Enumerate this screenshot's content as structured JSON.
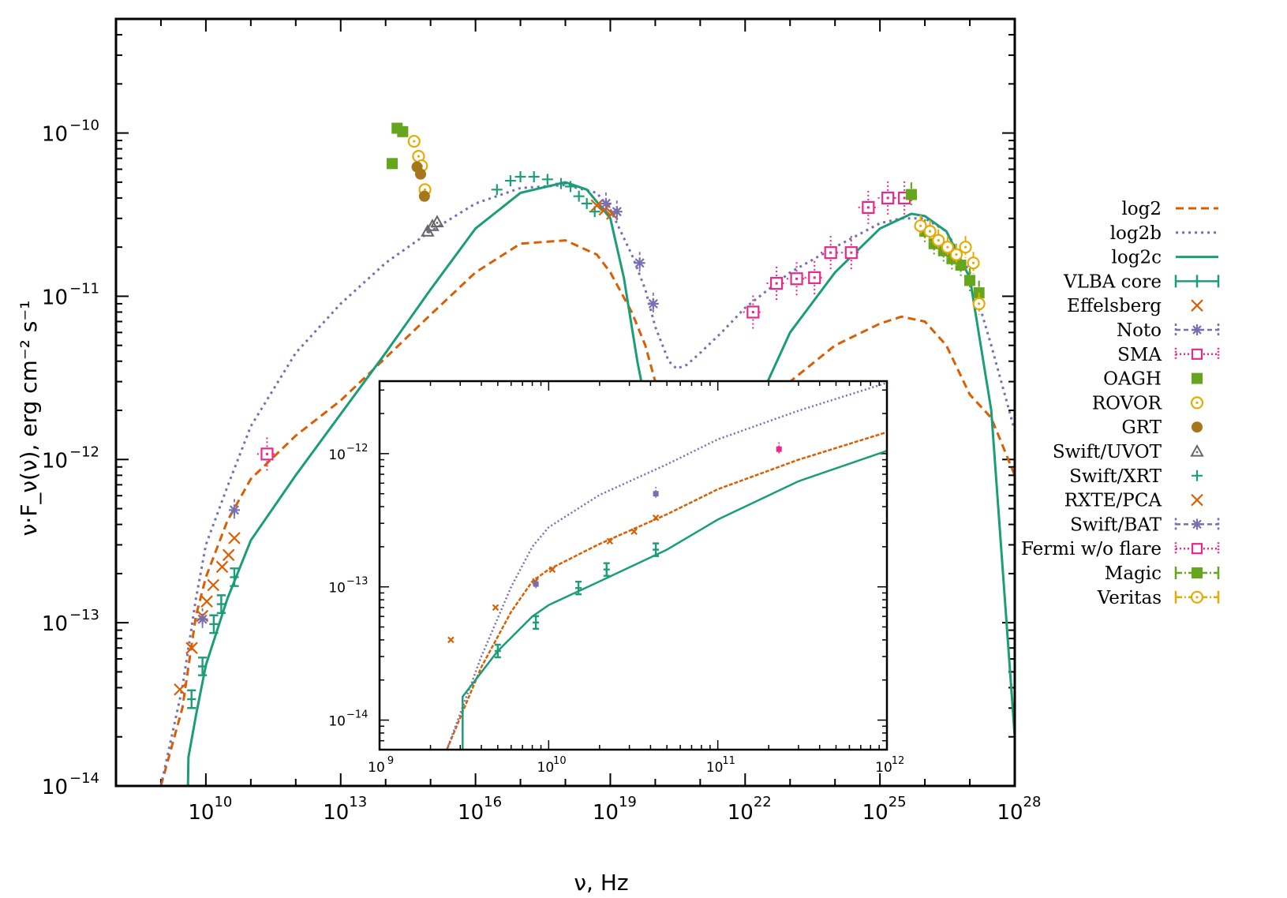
{
  "colors": {
    "log2": "#d95f02",
    "log2b": "#7570b3",
    "log2c": "#1b9e77",
    "vlba": "#1b9e77",
    "effelsberg": "#d95f02",
    "noto": "#7570b3",
    "sma": "#e7298a",
    "oagh": "#66a61e",
    "rovor": "#e6ab02",
    "grt": "#a6761d",
    "uvot": "#666666",
    "xrt": "#1b9e77",
    "rxte": "#d95f02",
    "bat": "#7570b3",
    "fermi": "#e7298a",
    "magic": "#66a61e",
    "veritas": "#e6ab02"
  },
  "chart_data": {
    "type": "scatter",
    "xlabel": "ν, Hz",
    "ylabel": "ν·F_ν(ν), erg cm⁻² s⁻¹",
    "xscale": "log",
    "yscale": "log",
    "xlim": [
      100000000.0,
      1e+28
    ],
    "ylim": [
      1e-14,
      5e-10
    ],
    "x_tick_labels": [
      "10",
      "10",
      "10",
      "10",
      "10",
      "10",
      "10"
    ],
    "x_tick_exponents": [
      "10",
      "13",
      "16",
      "19",
      "22",
      "25",
      "28"
    ],
    "y_tick_labels": [
      "10",
      "10",
      "10",
      "10",
      "10"
    ],
    "y_tick_exponents": [
      "−10",
      "−11",
      "−12",
      "−13",
      "−14"
    ],
    "legend_position": "right, outside",
    "series": [
      {
        "name": "log2",
        "kind": "model",
        "style": "dashed",
        "color_key": "log2",
        "x": [
          1000000000.0,
          3000000000.0,
          6000000000.0,
          10000000000.0,
          30000000000.0,
          100000000000.0,
          1000000000000.0,
          10000000000000.0,
          100000000000000.0,
          1000000000000000.0,
          1e+16,
          1e+17,
          1e+18,
          5e+18,
          1e+19,
          3e+19,
          6e+19,
          1e+20,
          2e+20,
          3e+20,
          1e+21,
          1e+22,
          1e+23,
          1e+24,
          1e+25,
          3e+25,
          1e+26,
          3e+26,
          1e+27,
          3e+27,
          1e+28
        ],
        "y": [
          1e-14,
          3e-14,
          1.1e-13,
          1.9e-13,
          4.2e-13,
          7.6e-13,
          1.4e-12,
          2.3e-12,
          4.2e-12,
          7.7e-12,
          1.4e-11,
          2.1e-11,
          2.2e-11,
          1.8e-11,
          1.4e-11,
          8e-12,
          5e-12,
          3e-12,
          1.5e-12,
          1e-12,
          1e-12,
          1.5e-12,
          3e-12,
          5e-12,
          6.8e-12,
          7.5e-12,
          7e-12,
          5e-12,
          2.5e-12,
          1.8e-12,
          8e-13
        ]
      },
      {
        "name": "log2b",
        "kind": "model",
        "style": "dotted",
        "color_key": "log2b",
        "x": [
          1000000000.0,
          3000000000.0,
          6000000000.0,
          10000000000.0,
          30000000000.0,
          100000000000.0,
          1000000000000.0,
          10000000000000.0,
          100000000000000.0,
          1000000000000000.0,
          1e+16,
          1e+17,
          1e+18,
          5e+18,
          1e+19,
          3e+19,
          6e+19,
          1e+20,
          2e+20,
          3e+20,
          5e+20,
          1e+21,
          3e+21,
          1e+22,
          1e+23,
          1e+24,
          1e+25,
          3e+25,
          1e+26,
          3e+26,
          1e+27,
          3e+27,
          1e+28
        ],
        "y": [
          1e-14,
          4e-14,
          1.4e-13,
          3e-13,
          6.8e-13,
          1.6e-12,
          4.5e-12,
          9e-12,
          1.6e-11,
          2.5e-11,
          3.7e-11,
          4.6e-11,
          4.8e-11,
          4.3e-11,
          3.4e-11,
          1.8e-11,
          1.1e-11,
          6.5e-12,
          4e-12,
          3.6e-12,
          3.8e-12,
          4.5e-12,
          6e-12,
          8.5e-12,
          1.4e-11,
          2e-11,
          2.8e-11,
          3e-11,
          3e-11,
          2.5e-11,
          1.4e-11,
          5e-12,
          1.5e-12
        ]
      },
      {
        "name": "log2c",
        "kind": "model",
        "style": "solid",
        "color_key": "log2c",
        "x": [
          4000000000.0,
          4100000000.0,
          6000000000.0,
          10000000000.0,
          30000000000.0,
          100000000000.0,
          1000000000000.0,
          10000000000000.0,
          100000000000000.0,
          1000000000000000.0,
          1e+16,
          1e+17,
          1e+18,
          3e+18,
          1e+19,
          2e+19,
          4e+19,
          8e+19,
          1e+22,
          1e+23,
          1e+24,
          1e+25,
          5e+25,
          1e+26,
          3e+26,
          1e+27,
          3e+27,
          1e+28
        ],
        "y": [
          1e-14,
          1.5e-14,
          2.7e-14,
          5.5e-14,
          1.4e-13,
          3.2e-13,
          8e-13,
          1.9e-12,
          4.5e-12,
          1.1e-11,
          2.6e-11,
          4.3e-11,
          5e-11,
          4.5e-11,
          3e-11,
          1.3e-11,
          4e-12,
          1.5e-12,
          1.5e-12,
          6e-12,
          1.4e-11,
          2.6e-11,
          3.2e-11,
          3.1e-11,
          2.5e-11,
          1.3e-11,
          2e-12,
          2e-14
        ]
      },
      {
        "name": "VLBA core",
        "kind": "data",
        "marker": "line-errbar",
        "color_key": "vlba",
        "x": [
          4800000000.0,
          8400000000.0,
          15000000000.0,
          22000000000.0,
          43000000000.0
        ],
        "y": [
          3.4e-14,
          5.4e-14,
          9.8e-14,
          1.3e-13,
          1.9e-13
        ]
      },
      {
        "name": "Effelsberg",
        "kind": "data",
        "marker": "x",
        "color_key": "effelsberg",
        "x": [
          2640000000.0,
          4850000000.0,
          8350000000.0,
          10500000000.0,
          14600000000.0,
          23000000000.0,
          32000000000.0,
          43000000000.0
        ],
        "y": [
          3.9e-14,
          7e-14,
          1.1e-13,
          1.35e-13,
          1.7e-13,
          2.2e-13,
          2.6e-13,
          3.3e-13
        ]
      },
      {
        "name": "Noto",
        "kind": "data",
        "marker": "asterisk-dashed",
        "color_key": "noto",
        "x": [
          8400000000.0,
          43000000000.0
        ],
        "y": [
          1.05e-13,
          4.9e-13
        ]
      },
      {
        "name": "SMA",
        "kind": "data",
        "marker": "square-dotted",
        "color_key": "sma",
        "x": [
          230000000000.0
        ],
        "y": [
          1.08e-12
        ]
      },
      {
        "name": "OAGH",
        "kind": "data",
        "marker": "filled-square",
        "color_key": "oagh",
        "x": [
          140000000000000.0,
          180000000000000.0,
          240000000000000.0
        ],
        "y": [
          6.5e-11,
          1.07e-10,
          1.02e-10
        ]
      },
      {
        "name": "ROVOR",
        "kind": "data",
        "marker": "circle-dot",
        "color_key": "rovor",
        "x": [
          430000000000000.0,
          540000000000000.0,
          630000000000000.0,
          750000000000000.0
        ],
        "y": [
          8.9e-11,
          7.2e-11,
          6.3e-11,
          4.5e-11
        ]
      },
      {
        "name": "GRT",
        "kind": "data",
        "marker": "filled-circle",
        "color_key": "grt",
        "x": [
          500000000000000.0,
          600000000000000.0,
          730000000000000.0
        ],
        "y": [
          6.2e-11,
          5.6e-11,
          4.1e-11
        ]
      },
      {
        "name": "Swift/UVOT",
        "kind": "data",
        "marker": "triangle",
        "color_key": "uvot",
        "x": [
          860000000000000.0,
          1100000000000000.0,
          1400000000000000.0
        ],
        "y": [
          2.5e-11,
          2.7e-11,
          2.85e-11
        ]
      },
      {
        "name": "Swift/XRT",
        "kind": "data",
        "marker": "plus",
        "color_key": "xrt",
        "x": [
          3e+16,
          6e+16,
          1e+17,
          2e+17,
          4e+17,
          8e+17,
          1.3e+18,
          2e+18,
          3e+18,
          4.5e+18
        ],
        "y": [
          4.5e-11,
          5.1e-11,
          5.4e-11,
          5.4e-11,
          5.2e-11,
          4.9e-11,
          4.7e-11,
          4.1e-11,
          3.7e-11,
          3.3e-11
        ]
      },
      {
        "name": "RXTE/PCA",
        "kind": "data",
        "marker": "x",
        "color_key": "rxte",
        "x": [
          5e+18,
          7.5e+18,
          1.1e+19
        ],
        "y": [
          3.6e-11,
          3.4e-11,
          3.2e-11
        ]
      },
      {
        "name": "Swift/BAT",
        "kind": "data",
        "marker": "asterisk-dashed",
        "color_key": "bat",
        "x": [
          8e+18,
          1.4e+19,
          4.5e+19,
          9e+19
        ],
        "y": [
          3.7e-11,
          3.3e-11,
          1.6e-11,
          9e-12
        ]
      },
      {
        "name": "Fermi w/o flare",
        "kind": "data",
        "marker": "square-dotted",
        "color_key": "fermi",
        "x": [
          1.5e+22,
          5e+22,
          1.4e+23,
          3.5e+23,
          8e+23,
          2.3e+24,
          5.5e+24,
          1.5e+25,
          3.5e+25
        ],
        "y": [
          8e-12,
          1.2e-11,
          1.28e-11,
          1.3e-11,
          1.85e-11,
          1.85e-11,
          3.5e-11,
          4e-11,
          4e-11
        ]
      },
      {
        "name": "Magic",
        "kind": "data",
        "marker": "square-dashdot",
        "color_key": "magic",
        "x": [
          5e+25,
          1e+26,
          1.6e+26,
          2.6e+26,
          4e+26,
          6.3e+26,
          1e+27,
          1.6e+27
        ],
        "y": [
          4.2e-11,
          2.5e-11,
          2.1e-11,
          1.9e-11,
          1.7e-11,
          1.55e-11,
          1.25e-11,
          1.05e-11
        ]
      },
      {
        "name": "Veritas",
        "kind": "data",
        "marker": "circle-dot-dashdot",
        "color_key": "veritas",
        "x": [
          8e+25,
          1.3e+26,
          2e+26,
          3.2e+26,
          5e+26,
          8e+26,
          1.2e+27,
          1.6e+27
        ],
        "y": [
          2.7e-11,
          2.5e-11,
          2.2e-11,
          2e-11,
          1.8e-11,
          2e-11,
          1.6e-11,
          9e-12
        ]
      }
    ],
    "inset": {
      "xscale": "log",
      "yscale": "log",
      "xlim": [
        1000000000.0,
        1000000000000.0
      ],
      "ylim": [
        6e-15,
        3.5e-12
      ],
      "x_tick_labels": [
        "10",
        "10",
        "10",
        "10"
      ],
      "x_tick_exponents": [
        "9",
        "10",
        "11",
        "12"
      ],
      "y_tick_labels": [
        "10",
        "10",
        "10"
      ],
      "y_tick_exponents": [
        "−12",
        "−13",
        "−14"
      ],
      "series": [
        {
          "name": "log2",
          "style": "dashed",
          "color_key": "log2",
          "x": [
            2500000000.0,
            4000000000.0,
            6000000000.0,
            8000000000.0,
            10000000000.0,
            20000000000.0,
            50000000000.0,
            100000000000.0,
            300000000000.0,
            1000000000000.0
          ],
          "y": [
            6e-15,
            2.5e-14,
            6.5e-14,
            1.1e-13,
            1.35e-13,
            2.1e-13,
            3.5e-13,
            5.4e-13,
            9e-13,
            1.45e-12
          ]
        },
        {
          "name": "log2b",
          "style": "dotted",
          "color_key": "log2b",
          "x": [
            2500000000.0,
            4000000000.0,
            6000000000.0,
            8000000000.0,
            10000000000.0,
            20000000000.0,
            50000000000.0,
            100000000000.0,
            300000000000.0,
            1000000000000.0
          ],
          "y": [
            6e-15,
            3e-14,
            1e-13,
            2e-13,
            2.8e-13,
            4.9e-13,
            8.3e-13,
            1.28e-12,
            2.1e-12,
            3.4e-12
          ]
        },
        {
          "name": "log2c",
          "style": "solid",
          "color_key": "log2c",
          "x": [
            3100000000.0,
            3100000000.0,
            5000000000.0,
            8000000000.0,
            10000000000.0,
            20000000000.0,
            50000000000.0,
            100000000000.0,
            300000000000.0,
            1000000000000.0
          ],
          "y": [
            6e-15,
            1.5e-14,
            3.3e-14,
            6e-14,
            7.3e-14,
            1.1e-13,
            1.9e-13,
            3.2e-13,
            6.2e-13,
            1.05e-12
          ]
        },
        {
          "name": "VLBA core",
          "color_key": "vlba",
          "marker": "errbar",
          "x": [
            5000000000.0,
            8400000000.0,
            15000000000.0,
            22000000000.0,
            43000000000.0
          ],
          "y": [
            3.3e-14,
            5.4e-14,
            9.8e-14,
            1.35e-13,
            1.9e-13
          ]
        },
        {
          "name": "Effelsberg",
          "color_key": "effelsberg",
          "marker": "x",
          "x": [
            2640000000.0,
            4850000000.0,
            8350000000.0,
            10500000000.0,
            23000000000.0,
            32000000000.0,
            43000000000.0
          ],
          "y": [
            4e-14,
            7e-14,
            1.1e-13,
            1.35e-13,
            2.2e-13,
            2.6e-13,
            3.3e-13
          ]
        },
        {
          "name": "Noto",
          "color_key": "noto",
          "marker": "square-small",
          "x": [
            8400000000.0,
            43000000000.0
          ],
          "y": [
            1.05e-13,
            5e-13
          ]
        },
        {
          "name": "SMA",
          "color_key": "sma",
          "marker": "square-small",
          "x": [
            230000000000.0
          ],
          "y": [
            1.08e-12
          ]
        }
      ]
    }
  },
  "legend": {
    "entries": [
      {
        "label": "log2",
        "style": "dashed",
        "color_key": "log2"
      },
      {
        "label": "log2b",
        "style": "dotted",
        "color_key": "log2b"
      },
      {
        "label": "log2c",
        "style": "solid",
        "color_key": "log2c"
      },
      {
        "label": "VLBA core",
        "style": "solid-errbar",
        "color_key": "vlba"
      },
      {
        "label": "Effelsberg",
        "style": "x",
        "color_key": "effelsberg"
      },
      {
        "label": "Noto",
        "style": "dashed-asterisk",
        "color_key": "noto"
      },
      {
        "label": "SMA",
        "style": "dotted-square",
        "color_key": "sma"
      },
      {
        "label": "OAGH",
        "style": "filled-square",
        "color_key": "oagh"
      },
      {
        "label": "ROVOR",
        "style": "circle-dot",
        "color_key": "rovor"
      },
      {
        "label": "GRT",
        "style": "filled-circle",
        "color_key": "grt"
      },
      {
        "label": "Swift/UVOT",
        "style": "triangle",
        "color_key": "uvot"
      },
      {
        "label": "Swift/XRT",
        "style": "plus",
        "color_key": "xrt"
      },
      {
        "label": "RXTE/PCA",
        "style": "x",
        "color_key": "rxte"
      },
      {
        "label": "Swift/BAT",
        "style": "dashed-asterisk",
        "color_key": "bat"
      },
      {
        "label": "Fermi w/o flare",
        "style": "dotted-square",
        "color_key": "fermi"
      },
      {
        "label": "Magic",
        "style": "dashdot-filled-square",
        "color_key": "magic"
      },
      {
        "label": "Veritas",
        "style": "dashdot-circle-dot",
        "color_key": "veritas"
      }
    ]
  }
}
